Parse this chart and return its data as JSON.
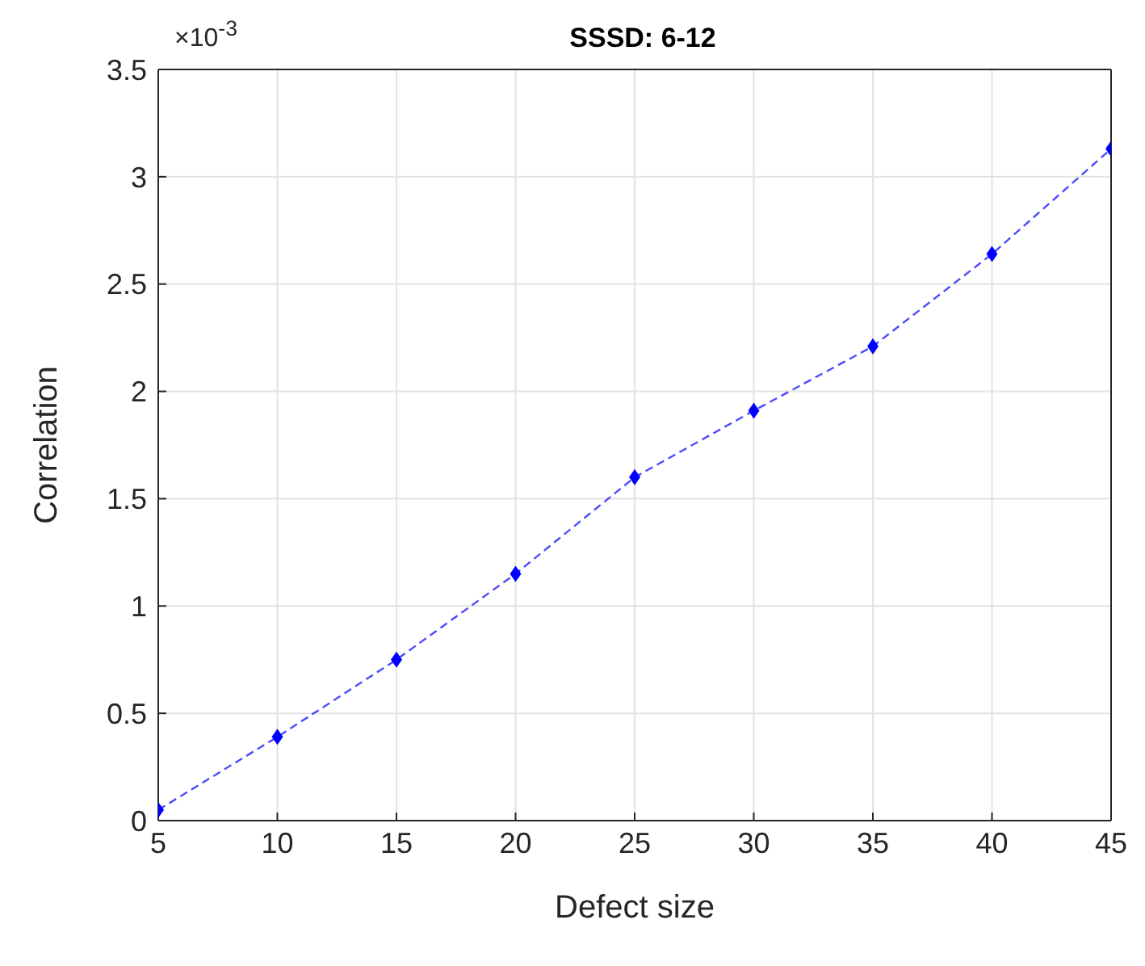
{
  "chart_data": {
    "type": "line",
    "title": "SSSD: 6-12",
    "xlabel": "Defect size",
    "ylabel": "Correlation",
    "annotations": [
      "×10$^{-3}$"
    ],
    "x": [
      5,
      10,
      15,
      20,
      25,
      30,
      35,
      40,
      45
    ],
    "series": [
      {
        "color": "#0000ff",
        "values": [
          0.05,
          0.39,
          0.75,
          1.15,
          1.6,
          1.91,
          2.21,
          2.64,
          3.13
        ]
      }
    ],
    "xlim": [
      5,
      45
    ],
    "xticks": [
      5,
      10,
      15,
      20,
      25,
      30,
      35,
      40,
      45
    ],
    "ylim": [
      0,
      3.5
    ],
    "yticks": [
      0,
      0.5,
      1,
      1.5,
      2,
      2.5,
      3,
      3.5
    ],
    "grid": true,
    "marker": "diamond",
    "line_style": "dashed"
  }
}
